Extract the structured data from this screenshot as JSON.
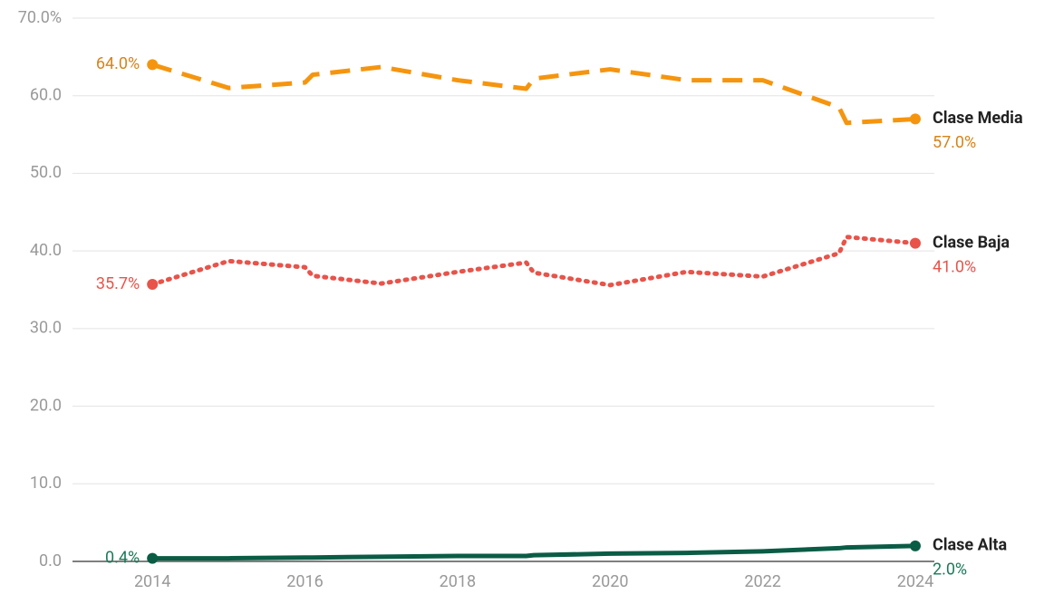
{
  "chart_data": {
    "type": "line",
    "x": [
      2014,
      2015,
      2016,
      2016.1,
      2017,
      2018,
      2018.9,
      2019,
      2020,
      2021,
      2022,
      2023,
      2023.1,
      2024
    ],
    "series": [
      {
        "name": "Clase Media",
        "color": "#f5950f",
        "label_color": "#d5841c",
        "line_style": "dashed",
        "values": [
          64.0,
          61.0,
          61.7,
          62.7,
          63.7,
          62.0,
          60.9,
          62.2,
          63.4,
          62.0,
          62.0,
          58.5,
          56.5,
          57.0
        ],
        "value_labels": [
          "64.0%",
          null,
          null,
          null,
          null,
          null,
          null,
          null,
          null,
          null,
          null,
          null,
          null,
          "57.0%"
        ]
      },
      {
        "name": "Clase Baja",
        "color": "#e8534a",
        "label_color": "#e8534a",
        "line_style": "dotted",
        "values": [
          35.7,
          38.7,
          37.9,
          36.8,
          35.8,
          37.3,
          38.5,
          37.2,
          35.6,
          37.3,
          36.7,
          39.7,
          41.8,
          41.0
        ],
        "value_labels": [
          "35.7%",
          null,
          null,
          null,
          null,
          null,
          null,
          null,
          null,
          null,
          null,
          null,
          null,
          "41.0%"
        ]
      },
      {
        "name": "Clase Alta",
        "color": "#0b5c45",
        "label_color": "#1a7a5a",
        "line_style": "solid",
        "values": [
          0.4,
          0.4,
          0.5,
          0.5,
          0.6,
          0.7,
          0.7,
          0.8,
          1.0,
          1.1,
          1.3,
          1.7,
          1.8,
          2.0
        ],
        "value_labels": [
          "0.4%",
          null,
          null,
          null,
          null,
          null,
          null,
          null,
          null,
          null,
          null,
          null,
          null,
          "2.0%"
        ]
      }
    ],
    "xlim": [
      2013,
      2024.25
    ],
    "xticks": [
      2014,
      2016,
      2018,
      2020,
      2022,
      2024
    ],
    "ylim": [
      0,
      70
    ],
    "yticks": [
      {
        "value": 0,
        "label": "0.0"
      },
      {
        "value": 10,
        "label": "10.0"
      },
      {
        "value": 20,
        "label": "20.0"
      },
      {
        "value": 30,
        "label": "30.0"
      },
      {
        "value": 40,
        "label": "40.0"
      },
      {
        "value": 50,
        "label": "50.0"
      },
      {
        "value": 60,
        "label": "60.0"
      },
      {
        "value": 70,
        "label": "70.0%"
      }
    ],
    "grid": true
  }
}
